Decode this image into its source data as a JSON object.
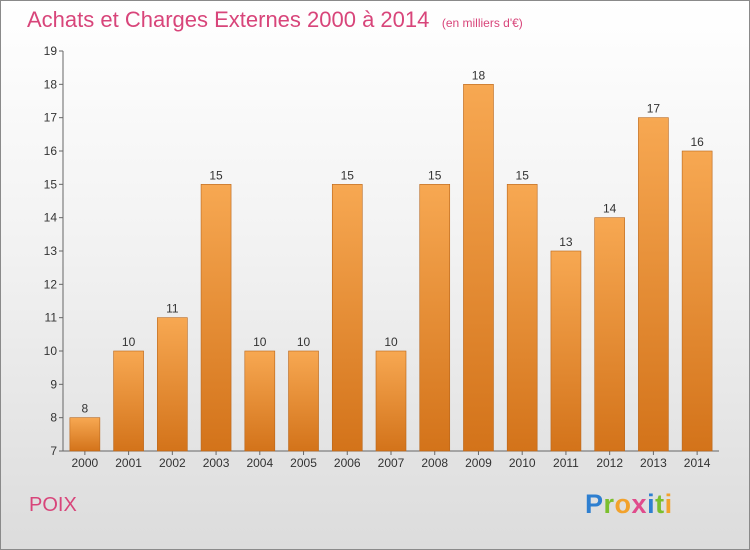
{
  "header": {
    "title": "Achats et Charges Externes 2000 à 2014",
    "unit_note": "(en milliers d'€)"
  },
  "footer": {
    "commune": "POIX",
    "brand_letters": [
      {
        "char": "P",
        "color": "#2e7fd0"
      },
      {
        "char": "r",
        "color": "#7bbf2e"
      },
      {
        "char": "o",
        "color": "#f2a22c"
      },
      {
        "char": "x",
        "color": "#e04b8c"
      },
      {
        "char": "i",
        "color": "#2e7fd0"
      },
      {
        "char": "t",
        "color": "#7bbf2e"
      },
      {
        "char": "i",
        "color": "#f2a22c"
      }
    ]
  },
  "colors": {
    "bar_top": "#f7a852",
    "bar_bottom": "#d3731a",
    "title": "#d8457a"
  },
  "chart_data": {
    "type": "bar",
    "title": "Achats et Charges Externes 2000 à 2014",
    "subtitle": "(en milliers d'€)",
    "xlabel": "",
    "ylabel": "",
    "categories": [
      "2000",
      "2001",
      "2002",
      "2003",
      "2004",
      "2005",
      "2006",
      "2007",
      "2008",
      "2009",
      "2010",
      "2011",
      "2012",
      "2013",
      "2014"
    ],
    "values": [
      8,
      10,
      11,
      15,
      10,
      10,
      15,
      10,
      15,
      18,
      15,
      13,
      14,
      17,
      16
    ],
    "ylim": [
      7,
      19
    ],
    "yticks": [
      7,
      8,
      9,
      10,
      11,
      12,
      13,
      14,
      15,
      16,
      17,
      18,
      19
    ],
    "grid": false,
    "legend": "none",
    "data_labels": true
  }
}
